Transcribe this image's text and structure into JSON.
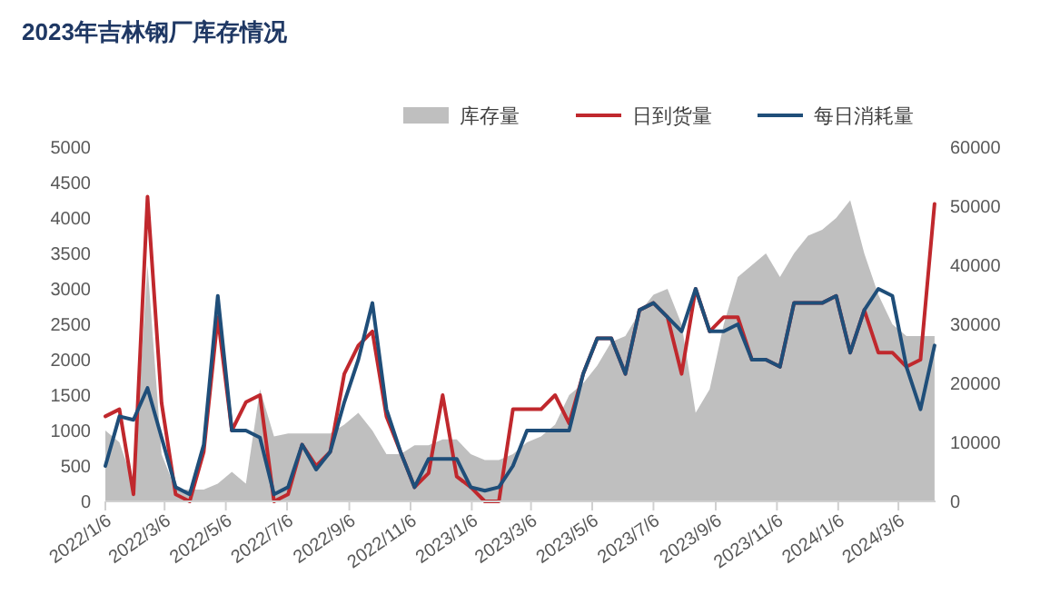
{
  "chart_data": {
    "type": "line",
    "title": "2023年吉林钢厂库存情况",
    "x": [
      "2022-01-06",
      "2022-01-20",
      "2022-02-03",
      "2022-02-17",
      "2022-03-03",
      "2022-03-17",
      "2022-03-31",
      "2022-04-14",
      "2022-04-28",
      "2022-05-12",
      "2022-05-26",
      "2022-06-09",
      "2022-06-23",
      "2022-07-07",
      "2022-07-21",
      "2022-08-04",
      "2022-08-18",
      "2022-09-01",
      "2022-09-15",
      "2022-09-29",
      "2022-10-13",
      "2022-10-27",
      "2022-11-10",
      "2022-11-24",
      "2022-12-08",
      "2022-12-22",
      "2023-01-05",
      "2023-01-19",
      "2023-02-02",
      "2023-02-16",
      "2023-03-02",
      "2023-03-16",
      "2023-03-30",
      "2023-04-13",
      "2023-04-27",
      "2023-05-11",
      "2023-05-25",
      "2023-06-08",
      "2023-06-22",
      "2023-07-06",
      "2023-07-20",
      "2023-08-03",
      "2023-08-17",
      "2023-08-31",
      "2023-09-14",
      "2023-09-28",
      "2023-10-12",
      "2023-10-26",
      "2023-11-09",
      "2023-11-23",
      "2023-12-07",
      "2023-12-21",
      "2024-01-04",
      "2024-01-18",
      "2024-02-01",
      "2024-02-15",
      "2024-02-29",
      "2024-03-14",
      "2024-03-28",
      "2024-04-11"
    ],
    "series": [
      {
        "name": "库存量",
        "type": "area",
        "axis": "y2",
        "color": "#bfbfbf",
        "values": [
          12000,
          10000,
          3000,
          40000,
          8000,
          2000,
          2000,
          2000,
          3000,
          5000,
          3000,
          19000,
          11000,
          11500,
          11500,
          11500,
          11500,
          13000,
          15000,
          12000,
          8000,
          8000,
          9500,
          9500,
          10500,
          10500,
          8000,
          7000,
          7000,
          8000,
          10000,
          11000,
          13000,
          18000,
          20000,
          23000,
          27000,
          28000,
          32000,
          35000,
          36000,
          30000,
          15000,
          19000,
          30000,
          38000,
          40000,
          42000,
          38000,
          42000,
          45000,
          46000,
          48000,
          51000,
          42000,
          35000,
          30000,
          28000,
          28000,
          28000
        ]
      },
      {
        "name": "日到货量",
        "type": "line",
        "color": "#c0282d",
        "values": [
          1200,
          1300,
          100,
          4300,
          1390,
          100,
          0,
          700,
          2600,
          1000,
          1400,
          1500,
          0,
          100,
          800,
          500,
          700,
          1800,
          2200,
          2400,
          1200,
          700,
          200,
          400,
          1500,
          350,
          200,
          0,
          0,
          1300,
          1300,
          1300,
          1500,
          1100,
          1800,
          2300,
          2300,
          1800,
          2700,
          2800,
          2600,
          1800,
          3000,
          2400,
          2600,
          2600,
          2000,
          2000,
          1900,
          2800,
          2800,
          2800,
          2900,
          2100,
          2700,
          2100,
          2100,
          1900,
          2000,
          4200
        ]
      },
      {
        "name": "每日消耗量",
        "type": "line",
        "color": "#1f4e79",
        "values": [
          500,
          1200,
          1150,
          1600,
          900,
          200,
          100,
          800,
          2900,
          1000,
          1000,
          900,
          100,
          200,
          800,
          450,
          700,
          1400,
          2000,
          2800,
          1300,
          700,
          200,
          600,
          600,
          600,
          200,
          150,
          200,
          500,
          1000,
          1000,
          1000,
          1000,
          1800,
          2300,
          2300,
          1800,
          2700,
          2800,
          2600,
          2400,
          3000,
          2400,
          2400,
          2500,
          2000,
          2000,
          1900,
          2800,
          2800,
          2800,
          2900,
          2100,
          2700,
          3000,
          2900,
          1900,
          1300,
          2200
        ]
      }
    ],
    "xlim": [
      "2022-01-06",
      "2024-04-12"
    ],
    "xticks": [
      {
        "value": "2022-01-06",
        "label": "2022/1/6"
      },
      {
        "value": "2022-03-06",
        "label": "2022/3/6"
      },
      {
        "value": "2022-05-06",
        "label": "2022/5/6"
      },
      {
        "value": "2022-07-06",
        "label": "2022/7/6"
      },
      {
        "value": "2022-09-06",
        "label": "2022/9/6"
      },
      {
        "value": "2022-11-06",
        "label": "2022/11/6"
      },
      {
        "value": "2023-01-06",
        "label": "2023/1/6"
      },
      {
        "value": "2023-03-06",
        "label": "2023/3/6"
      },
      {
        "value": "2023-05-06",
        "label": "2023/5/6"
      },
      {
        "value": "2023-07-06",
        "label": "2023/7/6"
      },
      {
        "value": "2023-09-06",
        "label": "2023/9/6"
      },
      {
        "value": "2023-11-06",
        "label": "2023/11/6"
      },
      {
        "value": "2024-01-06",
        "label": "2024/1/6"
      },
      {
        "value": "2024-03-06",
        "label": "2024/3/6"
      }
    ],
    "ylim": [
      0,
      5000
    ],
    "yticks": [
      0,
      500,
      1000,
      1500,
      2000,
      2500,
      3000,
      3500,
      4000,
      4500,
      5000
    ],
    "y2lim": [
      0,
      60000
    ],
    "y2ticks": [
      0,
      10000,
      20000,
      30000,
      40000,
      50000,
      60000
    ],
    "legend": "top right"
  }
}
